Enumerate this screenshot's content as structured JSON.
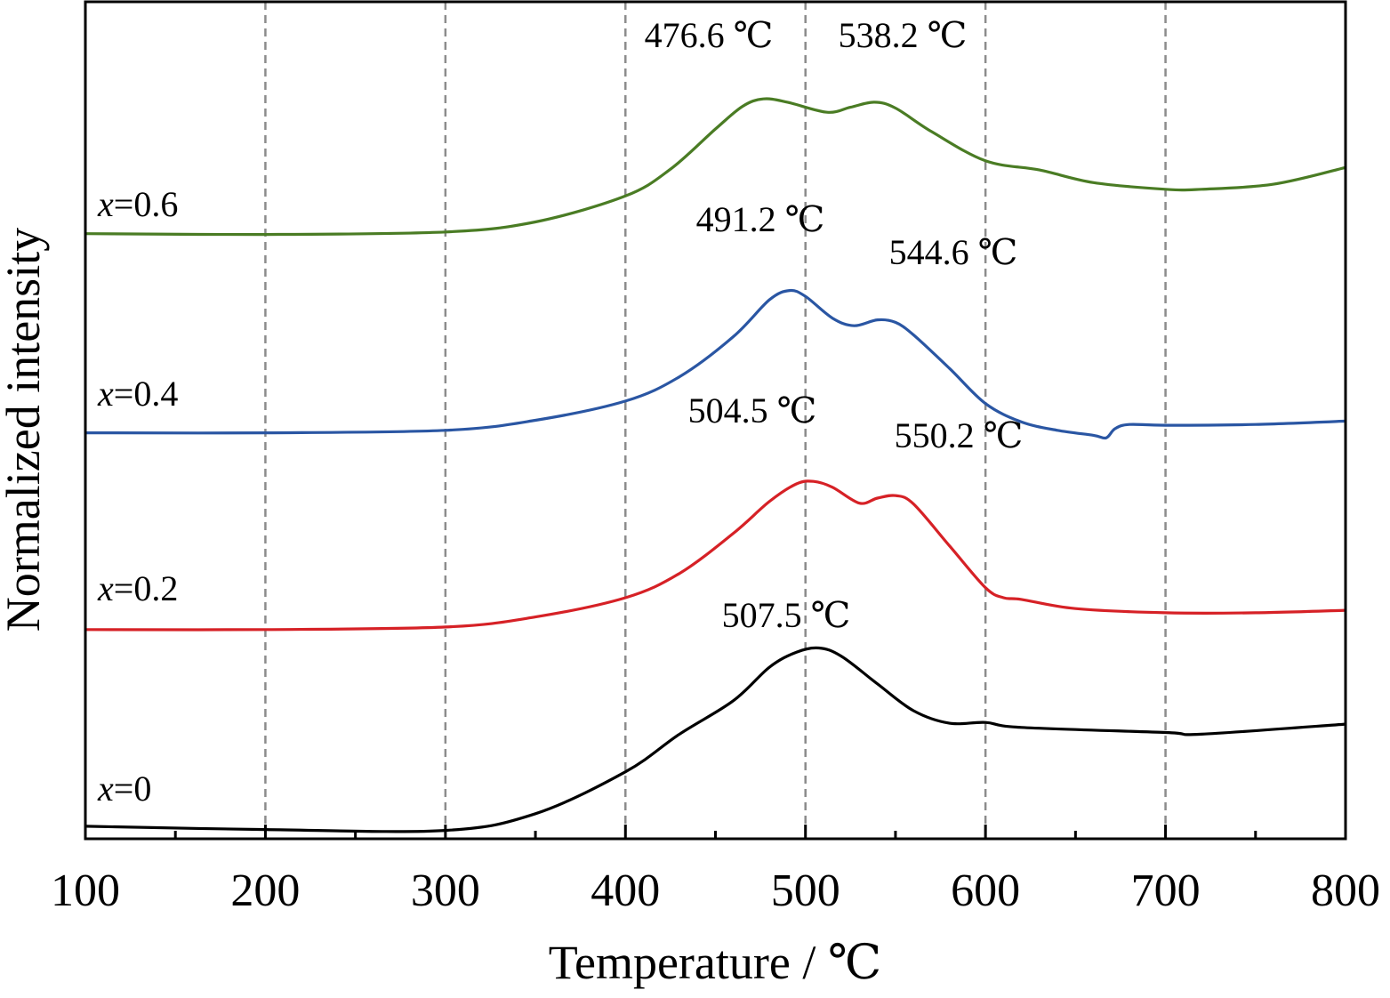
{
  "chart_data": {
    "type": "line",
    "title": "",
    "xlabel": "Temperature / ℃",
    "ylabel": "Normalized intensity",
    "xlim": [
      100,
      800
    ],
    "x_ticks": [
      100,
      200,
      300,
      400,
      500,
      600,
      700,
      800
    ],
    "x_tick_labels": [
      "100",
      "200",
      "300",
      "400",
      "500",
      "600",
      "700",
      "800"
    ],
    "ylim": [
      0,
      100
    ],
    "y_ticks_shown": false,
    "grid": "vertical dashed at 200, 300, 400, 500, 600, 700",
    "legend": "none",
    "series": [
      {
        "name": "x=0",
        "label_var": "x",
        "label_rest": "=0",
        "color": "#000000",
        "points": [
          [
            100,
            1.5
          ],
          [
            200,
            1.1
          ],
          [
            300,
            1.0
          ],
          [
            350,
            3.0
          ],
          [
            400,
            8.0
          ],
          [
            430,
            12.5
          ],
          [
            460,
            16.5
          ],
          [
            480,
            20.5
          ],
          [
            495,
            22.3
          ],
          [
            507.5,
            22.8
          ],
          [
            520,
            21.8
          ],
          [
            540,
            18.5
          ],
          [
            560,
            15.3
          ],
          [
            580,
            13.8
          ],
          [
            600,
            13.9
          ],
          [
            620,
            13.3
          ],
          [
            700,
            12.7
          ],
          [
            720,
            12.5
          ],
          [
            800,
            13.7
          ]
        ],
        "peaks": [
          {
            "x": 507.5,
            "label": "507.5 ℃"
          }
        ]
      },
      {
        "name": "x=0.2",
        "label_var": "x",
        "label_rest": "=0.2",
        "color": "#d62126",
        "points": [
          [
            100,
            25.0
          ],
          [
            200,
            25.0
          ],
          [
            300,
            25.3
          ],
          [
            350,
            26.5
          ],
          [
            400,
            28.8
          ],
          [
            430,
            31.7
          ],
          [
            460,
            36.5
          ],
          [
            480,
            40.3
          ],
          [
            495,
            42.4
          ],
          [
            504.5,
            42.7
          ],
          [
            515,
            42.0
          ],
          [
            530,
            40.1
          ],
          [
            540,
            40.7
          ],
          [
            550.2,
            41.0
          ],
          [
            560,
            40.0
          ],
          [
            580,
            35.0
          ],
          [
            600,
            30.0
          ],
          [
            610,
            28.8
          ],
          [
            620,
            28.6
          ],
          [
            650,
            27.5
          ],
          [
            700,
            27.0
          ],
          [
            750,
            27.0
          ],
          [
            800,
            27.3
          ]
        ],
        "peaks": [
          {
            "x": 504.5,
            "label": "504.5 ℃"
          },
          {
            "x": 550.2,
            "label": "550.2 ℃"
          }
        ]
      },
      {
        "name": "x=0.4",
        "label_var": "x",
        "label_rest": "=0.4",
        "color": "#2a56a3",
        "points": [
          [
            100,
            48.5
          ],
          [
            200,
            48.5
          ],
          [
            300,
            48.8
          ],
          [
            350,
            50.0
          ],
          [
            400,
            52.3
          ],
          [
            430,
            55.2
          ],
          [
            460,
            60.0
          ],
          [
            480,
            64.4
          ],
          [
            491.2,
            65.5
          ],
          [
            500,
            64.8
          ],
          [
            515,
            62.2
          ],
          [
            527,
            61.3
          ],
          [
            540,
            62.0
          ],
          [
            550,
            61.7
          ],
          [
            560,
            60.2
          ],
          [
            580,
            56.2
          ],
          [
            600,
            52.0
          ],
          [
            620,
            49.8
          ],
          [
            640,
            48.8
          ],
          [
            660,
            48.2
          ],
          [
            667,
            47.9
          ],
          [
            672,
            49.0
          ],
          [
            680,
            49.5
          ],
          [
            700,
            49.4
          ],
          [
            750,
            49.5
          ],
          [
            800,
            49.9
          ]
        ],
        "peaks": [
          {
            "x": 491.2,
            "label": "491.2 ℃"
          },
          {
            "x": 544.6,
            "label": "544.6 ℃"
          }
        ]
      },
      {
        "name": "x=0.6",
        "label_var": "x",
        "label_rest": "=0.6",
        "color": "#4a7c24",
        "points": [
          [
            100,
            72.3
          ],
          [
            200,
            72.2
          ],
          [
            300,
            72.5
          ],
          [
            350,
            73.7
          ],
          [
            400,
            76.8
          ],
          [
            425,
            80.0
          ],
          [
            450,
            84.8
          ],
          [
            465,
            87.5
          ],
          [
            476.6,
            88.4
          ],
          [
            490,
            88.0
          ],
          [
            512,
            86.8
          ],
          [
            525,
            87.4
          ],
          [
            538.2,
            88.0
          ],
          [
            550,
            87.3
          ],
          [
            570,
            84.5
          ],
          [
            600,
            81.0
          ],
          [
            630,
            79.9
          ],
          [
            660,
            78.4
          ],
          [
            700,
            77.6
          ],
          [
            720,
            77.6
          ],
          [
            760,
            78.2
          ],
          [
            800,
            80.2
          ]
        ],
        "peaks": [
          {
            "x": 476.6,
            "label": "476.6 ℃"
          },
          {
            "x": 538.2,
            "label": "538.2 ℃"
          }
        ]
      }
    ]
  }
}
